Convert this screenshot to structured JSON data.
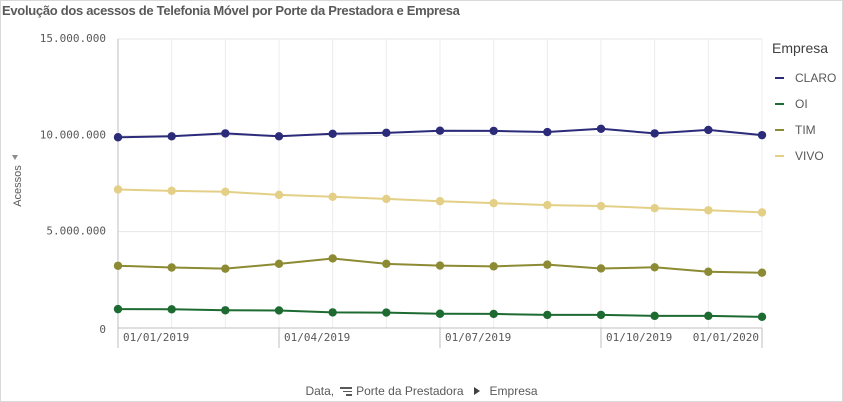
{
  "title": "Evolução dos acessos de Telefonia Móvel por Porte da Prestadora e Empresa",
  "legend": {
    "title": "Empresa",
    "items": [
      {
        "label": "CLARO",
        "color": "#2b2b7a"
      },
      {
        "label": "OI",
        "color": "#1e6b32"
      },
      {
        "label": "TIM",
        "color": "#8c8a33"
      },
      {
        "label": "VIVO",
        "color": "#e3cf86"
      }
    ]
  },
  "footer": {
    "data_label": "Data,",
    "porte_label": "Porte da Prestadora",
    "empresa_label": "Empresa"
  },
  "chart_data": {
    "type": "line",
    "title": "Evolução dos acessos de Telefonia Móvel por Porte da Prestadora e Empresa",
    "xlabel": "",
    "ylabel": "Acessos",
    "ylim": [
      0,
      15000000
    ],
    "y_ticks": [
      {
        "value": 0,
        "label": "0"
      },
      {
        "value": 5000000,
        "label": "5.000.000"
      },
      {
        "value": 10000000,
        "label": "10.000.000"
      },
      {
        "value": 15000000,
        "label": "15.000.000"
      }
    ],
    "x": [
      "2019-01",
      "2019-02",
      "2019-03",
      "2019-04",
      "2019-05",
      "2019-06",
      "2019-07",
      "2019-08",
      "2019-09",
      "2019-10",
      "2019-11",
      "2019-12",
      "2020-01"
    ],
    "x_tick_labels": [
      {
        "index": 0,
        "label": "01/01/2019"
      },
      {
        "index": 3,
        "label": "01/04/2019"
      },
      {
        "index": 6,
        "label": "01/07/2019"
      },
      {
        "index": 9,
        "label": "01/10/2019"
      },
      {
        "index": 12,
        "label": "01/01/2020"
      }
    ],
    "grid": true,
    "legend_position": "right",
    "series": [
      {
        "name": "CLARO",
        "color": "#2b2b7a",
        "values": [
          9900000,
          9950000,
          10100000,
          9950000,
          10080000,
          10130000,
          10240000,
          10230000,
          10170000,
          10340000,
          10100000,
          10280000,
          10010000
        ]
      },
      {
        "name": "OI",
        "color": "#1e6b32",
        "values": [
          980000,
          970000,
          920000,
          910000,
          810000,
          800000,
          740000,
          730000,
          680000,
          680000,
          630000,
          630000,
          580000
        ]
      },
      {
        "name": "TIM",
        "color": "#8c8a33",
        "values": [
          3230000,
          3140000,
          3080000,
          3330000,
          3610000,
          3330000,
          3240000,
          3200000,
          3290000,
          3090000,
          3150000,
          2920000,
          2870000
        ]
      },
      {
        "name": "VIVO",
        "color": "#e3cf86",
        "values": [
          7190000,
          7120000,
          7070000,
          6910000,
          6810000,
          6700000,
          6580000,
          6480000,
          6380000,
          6330000,
          6220000,
          6110000,
          6000000
        ]
      }
    ]
  }
}
